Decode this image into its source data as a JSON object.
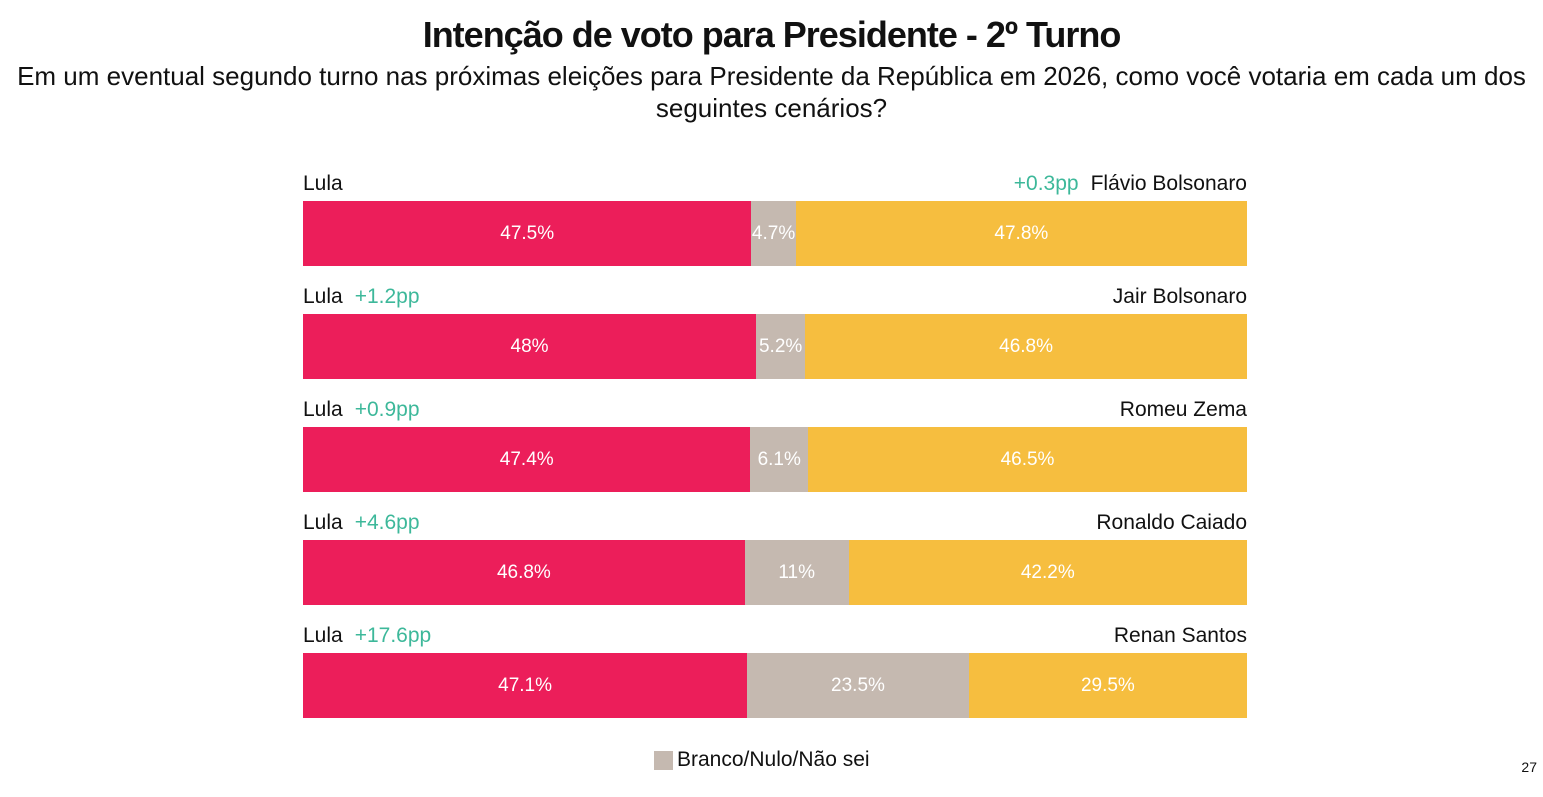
{
  "chart_data": {
    "type": "bar",
    "title": "Intenção de voto para Presidente - 2º Turno",
    "subtitle": "Em um eventual segundo turno nas próximas eleições para Presidente da República em 2026, como você votaria em cada um dos seguintes cenários?",
    "colors": {
      "lula": "#EC1E5A",
      "blank": "#C5B9B0",
      "opponent": "#F6BE3F",
      "lead": "#3DB89A"
    },
    "rows": [
      {
        "left": "Lula",
        "right": "Flávio Bolsonaro",
        "lead": "+0.3pp",
        "lead_side": "right",
        "values": [
          47.5,
          4.7,
          47.8
        ],
        "labels": [
          "47.5%",
          "4.7%",
          "47.8%"
        ]
      },
      {
        "left": "Lula",
        "right": "Jair Bolsonaro",
        "lead": "+1.2pp",
        "lead_side": "left",
        "values": [
          48,
          5.2,
          46.8
        ],
        "labels": [
          "48%",
          "5.2%",
          "46.8%"
        ]
      },
      {
        "left": "Lula",
        "right": "Romeu Zema",
        "lead": "+0.9pp",
        "lead_side": "left",
        "values": [
          47.4,
          6.1,
          46.5
        ],
        "labels": [
          "47.4%",
          "6.1%",
          "46.5%"
        ]
      },
      {
        "left": "Lula",
        "right": "Ronaldo Caiado",
        "lead": "+4.6pp",
        "lead_side": "left",
        "values": [
          46.8,
          11,
          42.2
        ],
        "labels": [
          "46.8%",
          "11%",
          "42.2%"
        ]
      },
      {
        "left": "Lula",
        "right": "Renan Santos",
        "lead": "+17.6pp",
        "lead_side": "left",
        "values": [
          47.1,
          23.5,
          29.5
        ],
        "labels": [
          "47.1%",
          "23.5%",
          "29.5%"
        ]
      }
    ],
    "legend": "Branco/Nulo/Não sei"
  },
  "page_number": "27"
}
